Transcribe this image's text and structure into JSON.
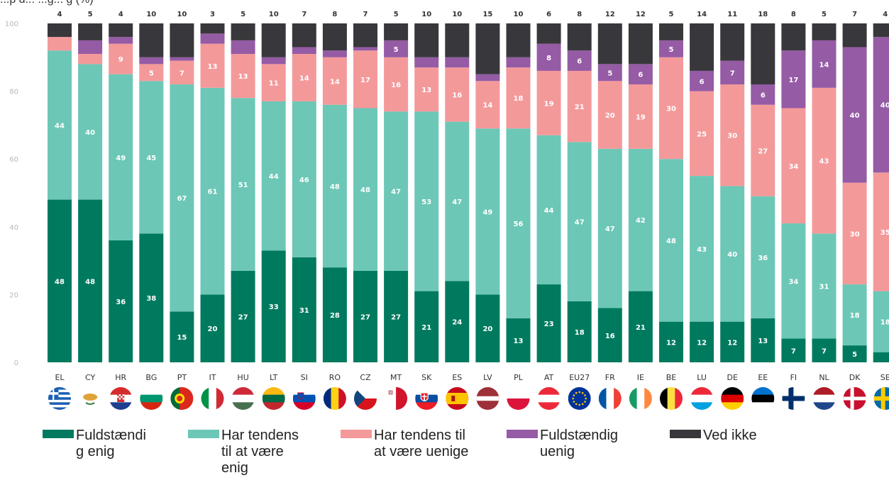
{
  "chart_data": {
    "type": "bar",
    "stacked": true,
    "title": "",
    "ylim": [
      0,
      100
    ],
    "yticks": [
      0,
      20,
      40,
      60,
      80,
      100
    ],
    "categories": [
      "EL",
      "CY",
      "HR",
      "BG",
      "PT",
      "IT",
      "HU",
      "LT",
      "SI",
      "RO",
      "CZ",
      "MT",
      "SK",
      "ES",
      "LV",
      "PL",
      "AT",
      "EU27",
      "FR",
      "IE",
      "BE",
      "LU",
      "DE",
      "EE",
      "FI",
      "NL",
      "DK",
      "SE"
    ],
    "series": [
      {
        "name": "Fuldstændig enig",
        "color": "#007a5e",
        "values": [
          48,
          48,
          36,
          38,
          15,
          20,
          27,
          33,
          31,
          28,
          27,
          27,
          21,
          24,
          20,
          13,
          23,
          18,
          16,
          21,
          12,
          12,
          12,
          13,
          7,
          7,
          5,
          3
        ]
      },
      {
        "name": "Har tendens til at være enig",
        "color": "#6cc7b6",
        "values": [
          44,
          40,
          49,
          45,
          67,
          61,
          51,
          44,
          46,
          48,
          48,
          47,
          53,
          47,
          49,
          56,
          44,
          47,
          47,
          42,
          48,
          43,
          40,
          36,
          34,
          31,
          18,
          18
        ]
      },
      {
        "name": "Har tendens til at være uenige",
        "color": "#f4999a",
        "values": [
          4,
          3,
          9,
          5,
          7,
          13,
          13,
          11,
          14,
          14,
          17,
          16,
          13,
          16,
          14,
          18,
          19,
          21,
          20,
          19,
          30,
          25,
          30,
          27,
          34,
          43,
          30,
          35
        ]
      },
      {
        "name": "Fuldstændig uenig",
        "color": "#955ba5",
        "values": [
          0,
          4,
          2,
          2,
          1,
          3,
          4,
          2,
          2,
          2,
          1,
          5,
          3,
          3,
          2,
          3,
          8,
          6,
          5,
          6,
          5,
          6,
          7,
          6,
          17,
          14,
          40,
          40
        ]
      },
      {
        "name": "Ved ikke",
        "color": "#38373b",
        "values": [
          4,
          5,
          4,
          10,
          10,
          3,
          5,
          10,
          7,
          8,
          7,
          5,
          10,
          10,
          15,
          10,
          6,
          8,
          12,
          12,
          5,
          14,
          11,
          18,
          8,
          5,
          7,
          4
        ]
      }
    ],
    "data_labels": {
      "Fuldstændig enig": [
        48,
        48,
        36,
        38,
        15,
        20,
        27,
        33,
        31,
        28,
        27,
        27,
        21,
        24,
        20,
        13,
        23,
        18,
        16,
        21,
        12,
        12,
        12,
        13,
        7,
        7,
        5,
        null
      ],
      "Har tendens til at være enig": [
        44,
        40,
        49,
        45,
        67,
        61,
        51,
        44,
        46,
        48,
        48,
        47,
        53,
        47,
        49,
        56,
        44,
        47,
        47,
        42,
        48,
        43,
        40,
        36,
        34,
        31,
        18,
        18
      ],
      "Har tendens til at være uenige": [
        null,
        null,
        9,
        5,
        7,
        13,
        13,
        11,
        14,
        14,
        17,
        16,
        13,
        16,
        14,
        18,
        19,
        21,
        20,
        19,
        30,
        25,
        30,
        27,
        34,
        43,
        30,
        35
      ],
      "Fuldstændig uenig": [
        null,
        null,
        null,
        null,
        null,
        null,
        null,
        null,
        null,
        null,
        null,
        5,
        null,
        null,
        null,
        null,
        8,
        6,
        5,
        6,
        5,
        6,
        7,
        6,
        17,
        14,
        40,
        40
      ],
      "Ved ikke": [
        4,
        5,
        4,
        10,
        10,
        3,
        5,
        10,
        7,
        8,
        7,
        5,
        10,
        10,
        15,
        10,
        6,
        8,
        12,
        12,
        5,
        14,
        11,
        18,
        8,
        5,
        7,
        4
      ]
    },
    "legend": [
      "Fuldstændi\ng enig",
      "Har tendens\ntil at være\nenig",
      "Har tendens til\nat være uenige",
      "Fuldstændig\nuenig",
      "Ved ikke"
    ],
    "legend_position": "bottom",
    "grid": false
  },
  "flags": [
    "greece",
    "cyprus",
    "croatia",
    "bulgaria",
    "portugal",
    "italy",
    "hungary",
    "lithuania",
    "slovenia",
    "romania",
    "czech",
    "malta",
    "slovakia",
    "spain",
    "latvia",
    "poland",
    "austria",
    "eu",
    "france",
    "ireland",
    "belgium",
    "luxembourg",
    "germany",
    "estonia",
    "finland",
    "netherlands",
    "denmark",
    "sweden"
  ],
  "partial_title": "...p       d... ...g... g    (%)"
}
